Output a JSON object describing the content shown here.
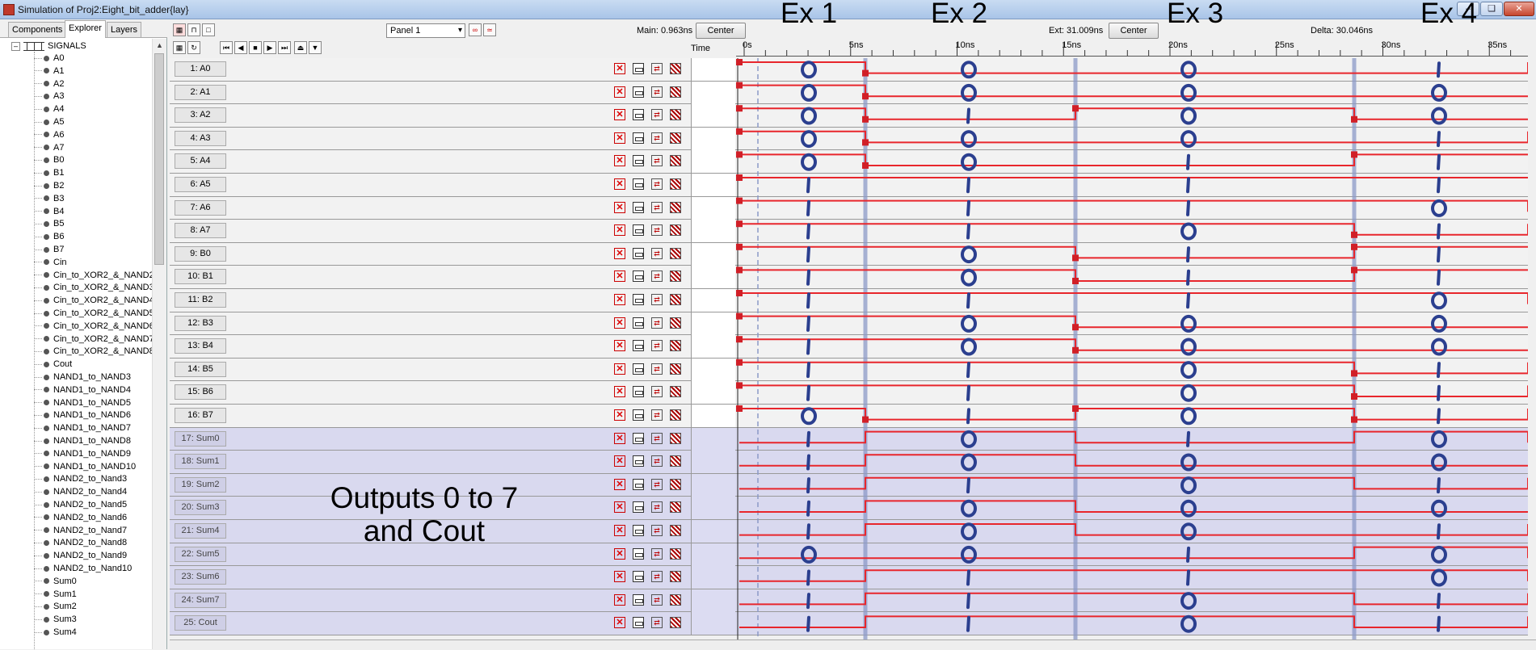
{
  "window": {
    "title": "Simulation of Proj2:Eight_bit_adder{lay}",
    "buttons": [
      "minimize",
      "restore",
      "close"
    ]
  },
  "left_panel": {
    "tabs": [
      {
        "label": "Components",
        "active": false
      },
      {
        "label": "Explorer",
        "active": true
      },
      {
        "label": "Layers",
        "active": false
      }
    ],
    "root_label": "SIGNALS",
    "signals": [
      "A0",
      "A1",
      "A2",
      "A3",
      "A4",
      "A5",
      "A6",
      "A7",
      "B0",
      "B1",
      "B2",
      "B3",
      "B4",
      "B5",
      "B6",
      "B7",
      "Cin",
      "Cin_to_XOR2_&_NAND2",
      "Cin_to_XOR2_&_NAND3",
      "Cin_to_XOR2_&_NAND4",
      "Cin_to_XOR2_&_NAND5",
      "Cin_to_XOR2_&_NAND6",
      "Cin_to_XOR2_&_NAND7",
      "Cin_to_XOR2_&_NAND8",
      "Cout",
      "NAND1_to_NAND3",
      "NAND1_to_NAND4",
      "NAND1_to_NAND5",
      "NAND1_to_NAND6",
      "NAND1_to_NAND7",
      "NAND1_to_NAND8",
      "NAND1_to_NAND9",
      "NAND1_to_NAND10",
      "NAND2_to_Nand3",
      "NAND2_to_Nand4",
      "NAND2_to_Nand5",
      "NAND2_to_Nand6",
      "NAND2_to_Nand7",
      "NAND2_to_Nand8",
      "NAND2_to_Nand9",
      "NAND2_to_Nand10",
      "Sum0",
      "Sum1",
      "Sum2",
      "Sum3",
      "Sum4"
    ]
  },
  "toolbar": {
    "panel_select": "Panel 1",
    "main_label": "Main: 0.963ns",
    "main_center_button": "Center",
    "ext_label": "Ext: 31.009ns",
    "ext_center_button": "Center",
    "delta_label": "Delta: 30.046ns",
    "time_column_label": "Time",
    "ruler_ticks": [
      "0s",
      "5ns",
      "10ns",
      "15ns",
      "20ns",
      "25ns",
      "30ns",
      "35ns"
    ]
  },
  "annotations": {
    "examples": [
      "Ex 1",
      "Ex 2",
      "Ex 3",
      "Ex 4"
    ],
    "outputs_note_line1": "Outputs 0 to 7",
    "outputs_note_line2": "and Cout"
  },
  "colors": {
    "waveform": "#e8262c",
    "marker": "#d11f27",
    "handwriting": "#2b3f8f",
    "cursor": "#8c9ac8",
    "output_row_bg": "#d9d9ef"
  },
  "signal_rows": [
    {
      "label": "1: A0",
      "kind": "input",
      "levels": [
        1,
        0,
        0,
        0,
        1
      ]
    },
    {
      "label": "2: A1",
      "kind": "input",
      "levels": [
        1,
        0,
        0,
        0,
        0
      ]
    },
    {
      "label": "3: A2",
      "kind": "input",
      "levels": [
        1,
        0,
        1,
        0,
        0
      ]
    },
    {
      "label": "4: A3",
      "kind": "input",
      "levels": [
        1,
        0,
        0,
        0,
        1
      ]
    },
    {
      "label": "5: A4",
      "kind": "input",
      "levels": [
        1,
        0,
        0,
        1,
        1
      ]
    },
    {
      "label": "6: A5",
      "kind": "input",
      "levels": [
        1,
        1,
        1,
        1,
        1
      ]
    },
    {
      "label": "7: A6",
      "kind": "input",
      "levels": [
        1,
        1,
        1,
        1,
        0
      ]
    },
    {
      "label": "8: A7",
      "kind": "input",
      "levels": [
        1,
        1,
        1,
        0,
        1
      ]
    },
    {
      "label": "9: B0",
      "kind": "input",
      "levels": [
        1,
        1,
        0,
        1,
        1
      ]
    },
    {
      "label": "10: B1",
      "kind": "input",
      "levels": [
        1,
        1,
        0,
        1,
        1
      ]
    },
    {
      "label": "11: B2",
      "kind": "input",
      "levels": [
        1,
        1,
        1,
        1,
        0
      ]
    },
    {
      "label": "12: B3",
      "kind": "input",
      "levels": [
        1,
        1,
        0,
        0,
        0
      ]
    },
    {
      "label": "13: B4",
      "kind": "input",
      "levels": [
        1,
        1,
        0,
        0,
        0
      ]
    },
    {
      "label": "14: B5",
      "kind": "input",
      "levels": [
        1,
        1,
        1,
        0,
        1
      ]
    },
    {
      "label": "15: B6",
      "kind": "input",
      "levels": [
        1,
        1,
        1,
        0,
        1
      ]
    },
    {
      "label": "16: B7",
      "kind": "input",
      "levels": [
        1,
        0,
        1,
        0,
        1
      ]
    },
    {
      "label": "17: Sum0",
      "kind": "output",
      "levels": [
        0,
        1,
        0,
        1,
        0
      ]
    },
    {
      "label": "18: Sum1",
      "kind": "output",
      "levels": [
        0,
        1,
        0,
        0,
        0
      ]
    },
    {
      "label": "19: Sum2",
      "kind": "output",
      "levels": [
        0,
        1,
        1,
        0,
        1
      ]
    },
    {
      "label": "20: Sum3",
      "kind": "output",
      "levels": [
        0,
        1,
        0,
        0,
        0
      ]
    },
    {
      "label": "21: Sum4",
      "kind": "output",
      "levels": [
        0,
        1,
        0,
        0,
        1
      ]
    },
    {
      "label": "22: Sum5",
      "kind": "output",
      "levels": [
        0,
        0,
        0,
        1,
        0
      ]
    },
    {
      "label": "23: Sum6",
      "kind": "output",
      "levels": [
        0,
        1,
        1,
        1,
        0
      ]
    },
    {
      "label": "24: Sum7",
      "kind": "output",
      "levels": [
        0,
        1,
        1,
        0,
        1
      ]
    },
    {
      "label": "25: Cout",
      "kind": "output",
      "levels": [
        0,
        1,
        1,
        0,
        1
      ]
    }
  ]
}
